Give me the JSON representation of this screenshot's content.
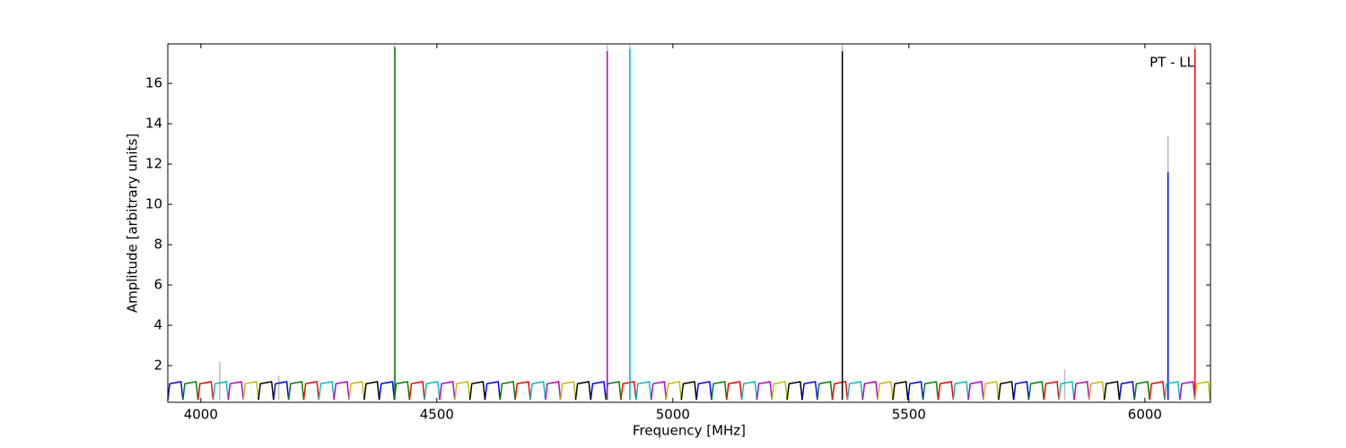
{
  "chart_data": {
    "type": "line",
    "xlabel": "Frequency [MHz]",
    "ylabel": "Amplitude [arbitrary units]",
    "annotation": "PT - LL",
    "xlim": [
      3930,
      6139
    ],
    "ylim": [
      0.18,
      17.96
    ],
    "xticks": [
      4000,
      4500,
      5000,
      5500,
      6000
    ],
    "yticks": [
      2,
      4,
      6,
      8,
      10,
      12,
      14,
      16
    ],
    "grid": false,
    "series": [
      {
        "color": "#bbbbbb",
        "x": [
          4040,
          4040,
          null,
          4165,
          4165,
          null,
          4410,
          4410,
          null,
          4861,
          4861,
          null,
          4909,
          4909,
          null,
          5359,
          5359,
          null,
          5830,
          5830,
          null,
          6049,
          6049,
          null,
          6106,
          6106
        ],
        "values": [
          0.3,
          2.2,
          null,
          0.3,
          1.5,
          null,
          0.3,
          17.9,
          null,
          0.3,
          17.9,
          null,
          0.3,
          17.9,
          null,
          0.3,
          17.9,
          null,
          0.3,
          1.8,
          null,
          0.3,
          13.4,
          null,
          0.3,
          17.9
        ]
      },
      {
        "color": "#0000ff",
        "x": [
          3930,
          3934,
          3958,
          3962,
          null,
          4154,
          4158,
          4182,
          4186,
          null,
          4378,
          4382,
          4406,
          4410,
          null,
          4602,
          4606,
          4630,
          4634,
          null,
          4826,
          4830,
          4854,
          4858,
          null,
          5050,
          5054,
          5078,
          5082,
          null,
          5274,
          5278,
          5302,
          5306,
          null,
          5498,
          5502,
          5526,
          5530,
          null,
          5722,
          5726,
          5750,
          5754,
          null,
          5946,
          5950,
          5974,
          5978,
          null,
          6049,
          6049
        ],
        "values": [
          0.3,
          1.1,
          1.2,
          0.3,
          null,
          0.3,
          1.1,
          1.2,
          0.3,
          null,
          0.3,
          1.1,
          1.2,
          0.3,
          null,
          0.3,
          1.1,
          1.2,
          0.3,
          null,
          0.3,
          1.1,
          1.2,
          0.3,
          null,
          0.3,
          1.1,
          1.2,
          0.3,
          null,
          0.3,
          1.1,
          1.2,
          0.3,
          null,
          0.3,
          1.1,
          1.2,
          0.3,
          null,
          0.3,
          1.1,
          1.2,
          0.3,
          null,
          0.3,
          1.1,
          1.2,
          0.3,
          null,
          0.3,
          11.6
        ]
      },
      {
        "color": "#008000",
        "x": [
          3962,
          3966,
          3990,
          3994,
          null,
          4186,
          4190,
          4214,
          4218,
          null,
          4410,
          4414,
          4438,
          4442,
          null,
          4634,
          4638,
          4662,
          4666,
          null,
          4858,
          4862,
          4886,
          4890,
          null,
          5082,
          5086,
          5110,
          5114,
          null,
          5306,
          5310,
          5334,
          5338,
          null,
          5530,
          5534,
          5558,
          5562,
          null,
          5754,
          5758,
          5782,
          5786,
          null,
          5978,
          5982,
          6006,
          6010,
          null,
          4411,
          4411
        ],
        "values": [
          0.3,
          1.1,
          1.2,
          0.3,
          null,
          0.3,
          1.1,
          1.2,
          0.3,
          null,
          0.3,
          1.1,
          1.2,
          0.3,
          null,
          0.3,
          1.1,
          1.2,
          0.3,
          null,
          0.3,
          1.1,
          1.2,
          0.3,
          null,
          0.3,
          1.1,
          1.2,
          0.3,
          null,
          0.3,
          1.1,
          1.2,
          0.3,
          null,
          0.3,
          1.1,
          1.2,
          0.3,
          null,
          0.3,
          1.1,
          1.2,
          0.3,
          null,
          0.3,
          1.1,
          1.2,
          0.3,
          null,
          0.3,
          17.8
        ]
      },
      {
        "color": "#ff0000",
        "x": [
          3994,
          3998,
          4022,
          4026,
          null,
          4218,
          4222,
          4246,
          4250,
          null,
          4442,
          4446,
          4470,
          4474,
          null,
          4666,
          4670,
          4694,
          4698,
          null,
          4890,
          4894,
          4918,
          4922,
          null,
          5114,
          5118,
          5142,
          5146,
          null,
          5338,
          5342,
          5366,
          5370,
          null,
          5562,
          5566,
          5590,
          5594,
          null,
          5786,
          5790,
          5814,
          5818,
          null,
          6010,
          6014,
          6038,
          6042,
          null,
          6106,
          6106
        ],
        "values": [
          0.3,
          1.1,
          1.2,
          0.3,
          null,
          0.3,
          1.1,
          1.2,
          0.3,
          null,
          0.3,
          1.1,
          1.2,
          0.3,
          null,
          0.3,
          1.1,
          1.2,
          0.3,
          null,
          0.3,
          1.1,
          1.2,
          0.3,
          null,
          0.3,
          1.1,
          1.2,
          0.3,
          null,
          0.3,
          1.1,
          1.2,
          0.3,
          null,
          0.3,
          1.1,
          1.2,
          0.3,
          null,
          0.3,
          1.1,
          1.2,
          0.3,
          null,
          0.3,
          1.1,
          1.2,
          0.3,
          null,
          0.3,
          17.7
        ]
      },
      {
        "color": "#00bfbf",
        "x": [
          4026,
          4030,
          4054,
          4058,
          null,
          4250,
          4254,
          4278,
          4282,
          null,
          4474,
          4478,
          4502,
          4506,
          null,
          4698,
          4702,
          4726,
          4730,
          null,
          4922,
          4926,
          4950,
          4954,
          null,
          5146,
          5150,
          5174,
          5178,
          null,
          5370,
          5374,
          5398,
          5402,
          null,
          5594,
          5598,
          5622,
          5626,
          null,
          5818,
          5822,
          5846,
          5850,
          null,
          6042,
          6046,
          6070,
          6074,
          null,
          4909,
          4909
        ],
        "values": [
          0.3,
          1.1,
          1.2,
          0.3,
          null,
          0.3,
          1.1,
          1.2,
          0.3,
          null,
          0.3,
          1.1,
          1.2,
          0.3,
          null,
          0.3,
          1.1,
          1.2,
          0.3,
          null,
          0.3,
          1.1,
          1.2,
          0.3,
          null,
          0.3,
          1.1,
          1.2,
          0.3,
          null,
          0.3,
          1.1,
          1.2,
          0.3,
          null,
          0.3,
          1.1,
          1.2,
          0.3,
          null,
          0.3,
          1.1,
          1.2,
          0.3,
          null,
          0.3,
          1.1,
          1.2,
          0.3,
          null,
          0.3,
          17.7
        ]
      },
      {
        "color": "#bf00bf",
        "x": [
          4058,
          4062,
          4086,
          4090,
          null,
          4282,
          4286,
          4310,
          4314,
          null,
          4506,
          4510,
          4534,
          4538,
          null,
          4730,
          4734,
          4758,
          4762,
          null,
          4954,
          4958,
          4982,
          4986,
          null,
          5178,
          5182,
          5206,
          5210,
          null,
          5402,
          5406,
          5430,
          5434,
          null,
          5626,
          5630,
          5654,
          5658,
          null,
          5850,
          5854,
          5878,
          5882,
          null,
          6074,
          6078,
          6102,
          6106,
          null,
          4861,
          4861
        ],
        "values": [
          0.3,
          1.1,
          1.2,
          0.3,
          null,
          0.3,
          1.1,
          1.2,
          0.3,
          null,
          0.3,
          1.1,
          1.2,
          0.3,
          null,
          0.3,
          1.1,
          1.2,
          0.3,
          null,
          0.3,
          1.1,
          1.2,
          0.3,
          null,
          0.3,
          1.1,
          1.2,
          0.3,
          null,
          0.3,
          1.1,
          1.2,
          0.3,
          null,
          0.3,
          1.1,
          1.2,
          0.3,
          null,
          0.3,
          1.1,
          1.2,
          0.3,
          null,
          0.3,
          1.1,
          1.2,
          0.3,
          null,
          0.3,
          17.6
        ]
      },
      {
        "color": "#bfbf00",
        "x": [
          4090,
          4094,
          4118,
          4122,
          null,
          4314,
          4318,
          4342,
          4346,
          null,
          4538,
          4542,
          4566,
          4570,
          null,
          4762,
          4766,
          4790,
          4794,
          null,
          4986,
          4990,
          5014,
          5018,
          null,
          5210,
          5214,
          5238,
          5242,
          null,
          5434,
          5438,
          5462,
          5466,
          null,
          5658,
          5662,
          5686,
          5690,
          null,
          5882,
          5886,
          5910,
          5914,
          null,
          6106,
          6110,
          6134,
          6138
        ],
        "values": [
          0.3,
          1.1,
          1.2,
          0.3,
          null,
          0.3,
          1.1,
          1.2,
          0.3,
          null,
          0.3,
          1.1,
          1.2,
          0.3,
          null,
          0.3,
          1.1,
          1.2,
          0.3,
          null,
          0.3,
          1.1,
          1.2,
          0.3,
          null,
          0.3,
          1.1,
          1.2,
          0.3,
          null,
          0.3,
          1.1,
          1.2,
          0.3,
          null,
          0.3,
          1.1,
          1.2,
          0.3,
          null,
          0.3,
          1.1,
          1.2,
          0.3,
          null,
          0.3,
          1.1,
          1.2,
          0.3
        ]
      },
      {
        "color": "#000000",
        "x": [
          4122,
          4126,
          4150,
          4154,
          null,
          4346,
          4350,
          4374,
          4378,
          null,
          4570,
          4574,
          4598,
          4602,
          null,
          4794,
          4798,
          4822,
          4826,
          null,
          5018,
          5022,
          5046,
          5050,
          null,
          5242,
          5246,
          5270,
          5274,
          null,
          5466,
          5470,
          5494,
          5498,
          null,
          5690,
          5694,
          5718,
          5722,
          null,
          5914,
          5918,
          5942,
          5946,
          null,
          5359,
          5359
        ],
        "values": [
          0.3,
          1.1,
          1.2,
          0.3,
          null,
          0.3,
          1.1,
          1.2,
          0.3,
          null,
          0.3,
          1.1,
          1.2,
          0.3,
          null,
          0.3,
          1.1,
          1.2,
          0.3,
          null,
          0.3,
          1.1,
          1.2,
          0.3,
          null,
          0.3,
          1.1,
          1.2,
          0.3,
          null,
          0.3,
          1.1,
          1.2,
          0.3,
          null,
          0.3,
          1.1,
          1.2,
          0.3,
          null,
          0.3,
          1.1,
          1.2,
          0.3,
          null,
          0.3,
          17.6
        ]
      }
    ]
  }
}
